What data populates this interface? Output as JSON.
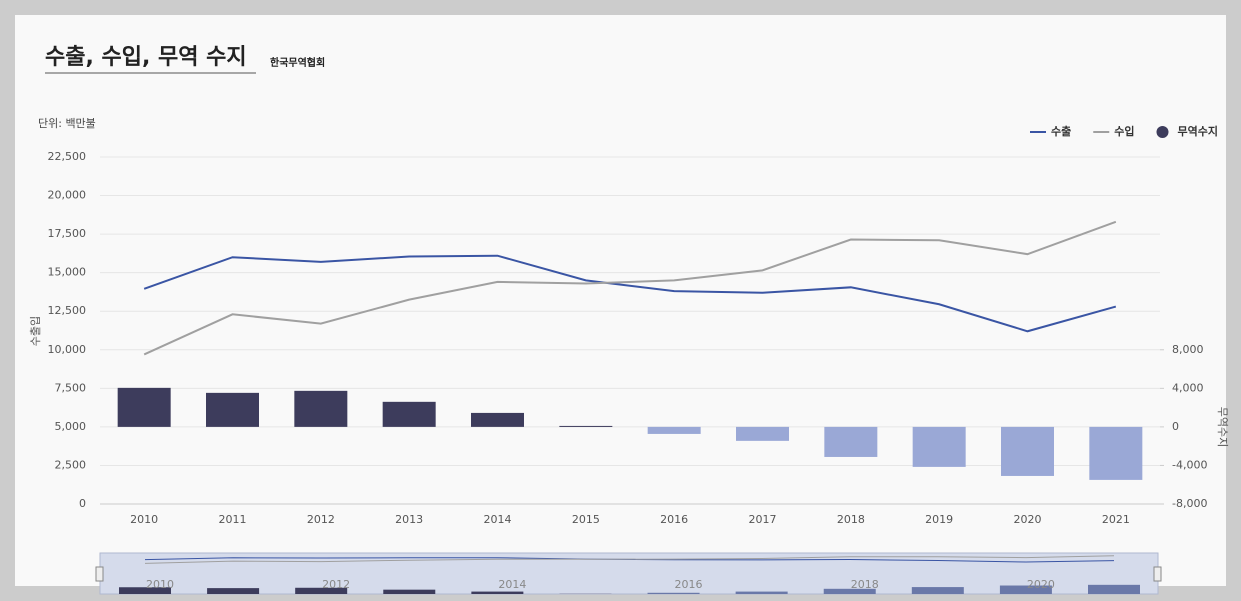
{
  "chart_data": {
    "type": "combo",
    "title": "수출, 수입, 무역 수지",
    "subtitle": "한국무역협회",
    "unit_label": "단위: 백만불",
    "y_label": "수출입",
    "y2_label": "무역수지",
    "categories": [
      "2010",
      "2011",
      "2012",
      "2013",
      "2014",
      "2015",
      "2016",
      "2017",
      "2018",
      "2019",
      "2020",
      "2021"
    ],
    "series": [
      {
        "name": "수출",
        "type": "line",
        "color": "#3a55a4",
        "values": [
          13950,
          16000,
          15700,
          16050,
          16100,
          14500,
          13800,
          13700,
          14050,
          12950,
          11200,
          12800
        ]
      },
      {
        "name": "수입",
        "type": "line",
        "color": "#a0a0a0",
        "values": [
          9700,
          12300,
          11700,
          13250,
          14400,
          14300,
          14500,
          15150,
          17150,
          17100,
          16200,
          18300
        ]
      },
      {
        "name": "무역수지",
        "type": "bar",
        "axis": "y2",
        "color": "#3d3c5c",
        "negative_color": "#9aa8d6",
        "values": [
          4050,
          3530,
          3740,
          2600,
          1450,
          100,
          -730,
          -1450,
          -3120,
          -4150,
          -5090,
          -5500
        ]
      }
    ],
    "ylim": [
      0,
      22500
    ],
    "yticks": [
      0,
      {
        "value": 2500,
        "label": "2,500"
      },
      {
        "value": 5000,
        "label": "5,000"
      },
      {
        "value": 7500,
        "label": "7,500"
      },
      {
        "value": 10000,
        "label": "10,000"
      },
      {
        "value": 12500,
        "label": "12,500"
      },
      {
        "value": 15000,
        "label": "15,000"
      },
      {
        "value": 17500,
        "label": "17,500"
      },
      {
        "value": 20000,
        "label": "20,000"
      },
      {
        "value": 22500,
        "label": "22,500"
      }
    ],
    "y2lim": [
      -8000,
      28000
    ],
    "y2ticks": [
      {
        "value": -8000,
        "label": "-8,000"
      },
      {
        "value": -4000,
        "label": "-4,000"
      },
      0,
      {
        "value": 4000,
        "label": "4,000"
      },
      {
        "value": 8000,
        "label": "8,000"
      }
    ],
    "grid": true,
    "legend": "top-right"
  }
}
